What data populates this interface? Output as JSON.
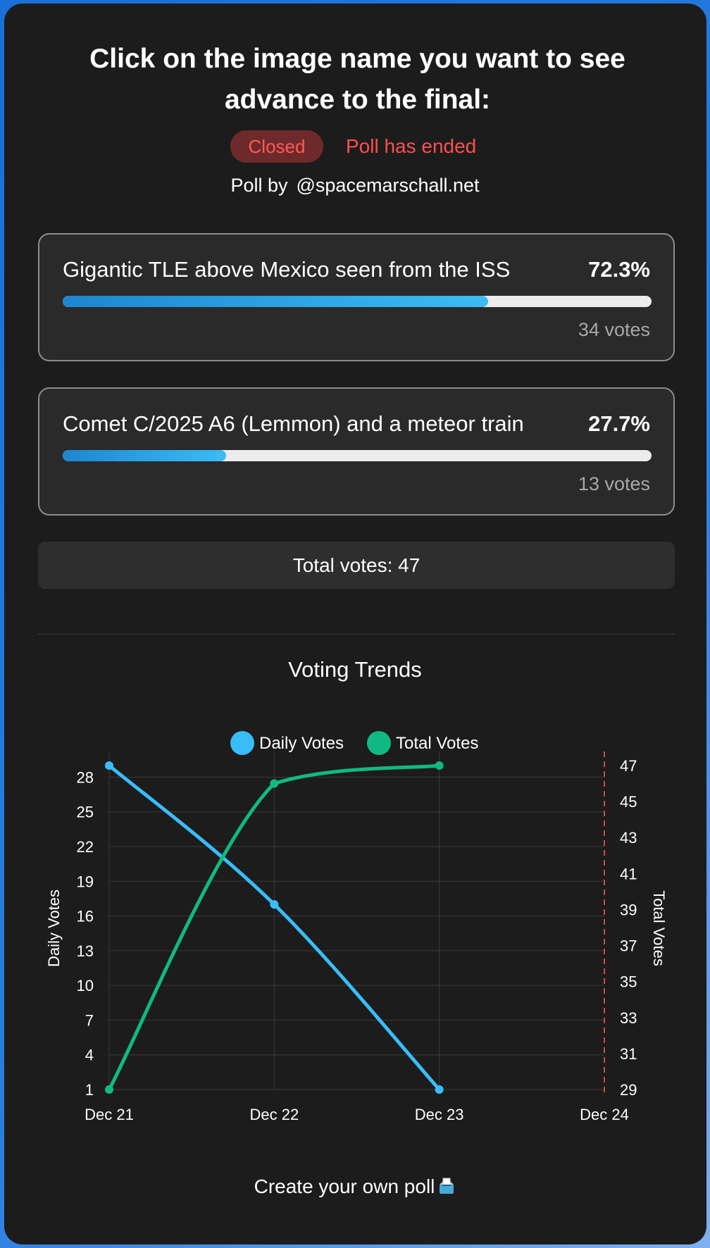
{
  "title": "Click on the image name you want to see advance to the final:",
  "status": {
    "badge": "Closed",
    "text": "Poll has ended"
  },
  "author": {
    "prefix": "Poll by",
    "handle": "@spacemarschall.net"
  },
  "options": [
    {
      "label": "Gigantic TLE above Mexico seen from the ISS",
      "percent": "72.3%",
      "fraction": 0.723,
      "votes": "34 votes"
    },
    {
      "label": "Comet C/2025 A6 (Lemmon) and a meteor train",
      "percent": "27.7%",
      "fraction": 0.277,
      "votes": "13 votes"
    }
  ],
  "total_votes": "Total votes: 47",
  "trends_title": "Voting Trends",
  "footer": {
    "text": "Create your own poll",
    "icon": "ballot-box-icon"
  },
  "colors": {
    "accent": "#38bdf8",
    "daily_series": "#38bdf8",
    "total_series": "#10b981",
    "closed_badge_text": "#ff5a5a",
    "closed_badge_bg": "#6e2a2a",
    "today_marker": "#d14b4b"
  },
  "chart_data": {
    "type": "line",
    "x": [
      "Dec 21",
      "Dec 22",
      "Dec 23",
      "Dec 24"
    ],
    "series": [
      {
        "name": "Daily Votes",
        "axis": "left",
        "values": [
          29,
          17,
          1,
          null
        ]
      },
      {
        "name": "Total Votes",
        "axis": "right",
        "values": [
          29,
          46,
          47,
          null
        ]
      }
    ],
    "ylabel_left": "Daily Votes",
    "ylabel_right": "Total Votes",
    "yticks_left": [
      "1",
      "4",
      "7",
      "10",
      "13",
      "16",
      "19",
      "22",
      "25",
      "28"
    ],
    "yticks_right": [
      "29",
      "31",
      "33",
      "35",
      "37",
      "39",
      "41",
      "43",
      "45",
      "47"
    ],
    "ylim_left": [
      1,
      29
    ],
    "ylim_right": [
      29,
      47
    ],
    "legend": "top-center",
    "grid": true,
    "today_marker": "Dec 24"
  }
}
